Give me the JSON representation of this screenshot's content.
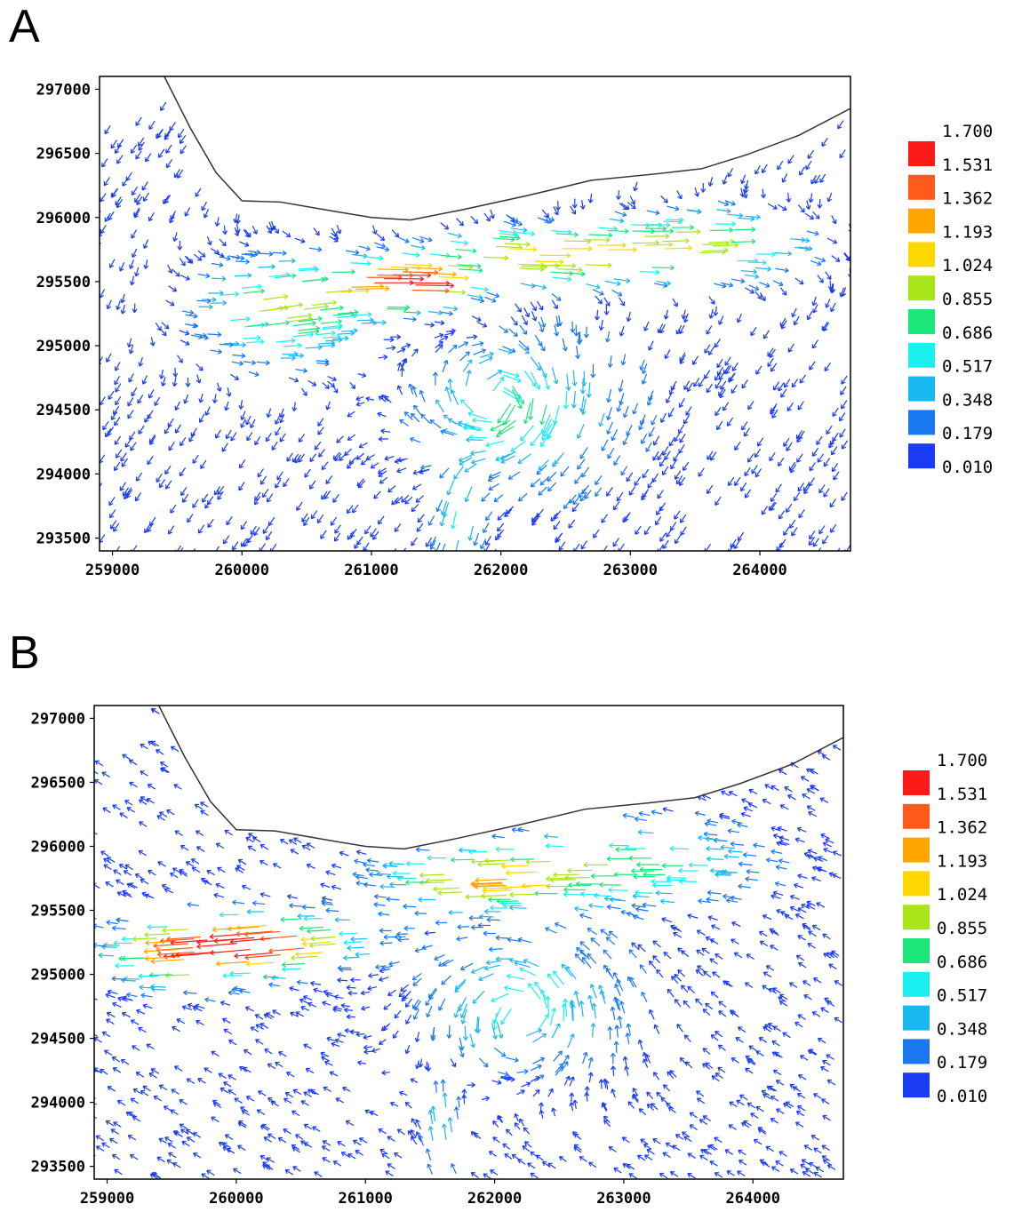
{
  "chart_data": [
    {
      "type": "quiver",
      "panel_label": "A",
      "xticks": [
        259000,
        260000,
        261000,
        262000,
        263000,
        264000
      ],
      "yticks": [
        293500,
        294000,
        294500,
        295000,
        295500,
        296000,
        296500,
        297000
      ],
      "xlim": [
        258900,
        264700
      ],
      "ylim": [
        293400,
        297100
      ],
      "grid": false,
      "legend_position": "right",
      "legend_values": [
        "1.700",
        "1.531",
        "1.362",
        "1.193",
        "1.024",
        "0.855",
        "0.686",
        "0.517",
        "0.348",
        "0.179",
        "0.010"
      ],
      "legend_colors": [
        "#ff1a1a",
        "#ff5a1a",
        "#ffa500",
        "#ffd700",
        "#a8e61a",
        "#1ae67a",
        "#1af0f0",
        "#1ab8f0",
        "#1a78f0",
        "#1a3cf5"
      ],
      "coastline": [
        [
          259400,
          297100
        ],
        [
          259600,
          296700
        ],
        [
          259800,
          296350
        ],
        [
          260000,
          296130
        ],
        [
          260300,
          296120
        ],
        [
          260700,
          296050
        ],
        [
          261000,
          296000
        ],
        [
          261300,
          295980
        ],
        [
          261700,
          296060
        ],
        [
          262200,
          296170
        ],
        [
          262700,
          296290
        ],
        [
          263200,
          296340
        ],
        [
          263550,
          296380
        ],
        [
          263900,
          296490
        ],
        [
          264300,
          296640
        ],
        [
          264700,
          296850
        ]
      ],
      "vector_field": "A"
    },
    {
      "type": "quiver",
      "panel_label": "B",
      "xticks": [
        259000,
        260000,
        261000,
        262000,
        263000,
        264000
      ],
      "yticks": [
        293500,
        294000,
        294500,
        295000,
        295500,
        296000,
        296500,
        297000
      ],
      "xlim": [
        258900,
        264700
      ],
      "ylim": [
        293400,
        297100
      ],
      "grid": false,
      "legend_position": "right",
      "legend_values": [
        "1.700",
        "1.531",
        "1.362",
        "1.193",
        "1.024",
        "0.855",
        "0.686",
        "0.517",
        "0.348",
        "0.179",
        "0.010"
      ],
      "legend_colors": [
        "#ff1a1a",
        "#ff5a1a",
        "#ffa500",
        "#ffd700",
        "#a8e61a",
        "#1ae67a",
        "#1af0f0",
        "#1ab8f0",
        "#1a78f0",
        "#1a3cf5"
      ],
      "coastline": [
        [
          259400,
          297100
        ],
        [
          259600,
          296700
        ],
        [
          259800,
          296350
        ],
        [
          260000,
          296130
        ],
        [
          260300,
          296120
        ],
        [
          260700,
          296050
        ],
        [
          261000,
          296000
        ],
        [
          261300,
          295980
        ],
        [
          261700,
          296060
        ],
        [
          262200,
          296170
        ],
        [
          262700,
          296290
        ],
        [
          263200,
          296340
        ],
        [
          263550,
          296380
        ],
        [
          263900,
          296490
        ],
        [
          264300,
          296640
        ],
        [
          264700,
          296850
        ]
      ],
      "vector_field": "B"
    }
  ]
}
